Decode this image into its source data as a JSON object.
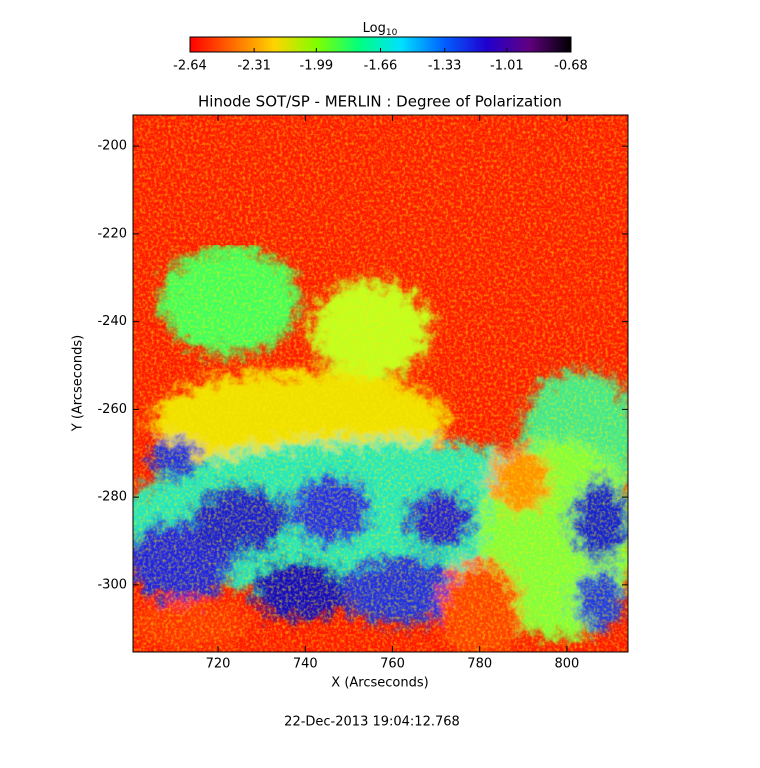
{
  "chart_data": {
    "type": "heatmap",
    "title": "Hinode SOT/SP - MERLIN : Degree of Polarization",
    "colorbar_title": "Log",
    "colorbar_title_subscript": "10",
    "clim": [
      -2.64,
      -0.68
    ],
    "cticks": [
      -2.64,
      -2.31,
      -1.99,
      -1.66,
      -1.33,
      -1.01,
      -0.68
    ],
    "colormap": [
      "#ff0000",
      "#ff6a00",
      "#ffd400",
      "#7fff00",
      "#00ff80",
      "#00e0ff",
      "#0060ff",
      "#2000d0",
      "#600080",
      "#000000"
    ],
    "x_label": "X (Arcseconds)",
    "y_label": "Y (Arcseconds)",
    "xlim": [
      700.5,
      814
    ],
    "ylim": [
      -315.3,
      -192.9
    ],
    "xticks": [
      720,
      740,
      760,
      780,
      800
    ],
    "yticks": [
      -200,
      -220,
      -240,
      -260,
      -280,
      -300
    ],
    "footer": "22-Dec-2013 19:04:12.768"
  }
}
